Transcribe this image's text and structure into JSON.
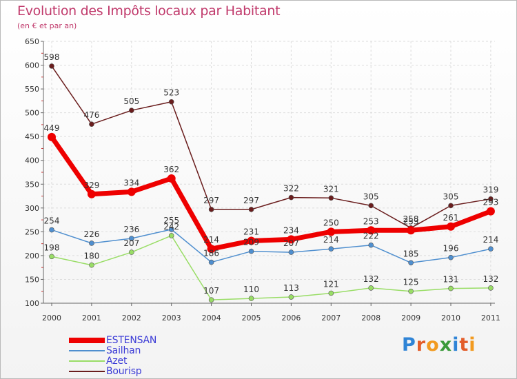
{
  "chart_data": {
    "type": "line",
    "title": "Evolution des Impôts locaux par Habitant",
    "subtitle": "(en € et par an)",
    "xlabel": "",
    "ylabel": "",
    "ylim": [
      100,
      650
    ],
    "yticks": [
      "650",
      "600",
      "550",
      "500",
      "450",
      "400",
      "350",
      "300",
      "250",
      "200",
      "150",
      "100"
    ],
    "categories": [
      "2000",
      "2001",
      "2002",
      "2003",
      "2004",
      "2005",
      "2006",
      "2007",
      "2008",
      "2009",
      "2010",
      "2011"
    ],
    "series": [
      {
        "name": "ESTENSAN",
        "color": "#ee0000",
        "values": [
          449,
          329,
          334,
          362,
          214,
          231,
          234,
          250,
          253,
          253,
          261,
          293
        ]
      },
      {
        "name": "Sailhan",
        "color": "#4f8fcf",
        "values": [
          254,
          226,
          236,
          255,
          186,
          209,
          207,
          214,
          222,
          185,
          196,
          214
        ]
      },
      {
        "name": "Azet",
        "color": "#99dd66",
        "values": [
          198,
          180,
          207,
          242,
          107,
          110,
          113,
          121,
          132,
          125,
          131,
          132
        ]
      },
      {
        "name": "Bourisp",
        "color": "#6a1d1d",
        "values": [
          598,
          476,
          505,
          523,
          297,
          297,
          322,
          321,
          305,
          258,
          305,
          319
        ]
      }
    ]
  },
  "logo": {
    "text": "Proxiti",
    "letters": [
      {
        "ch": "P",
        "color": "#2f84d6"
      },
      {
        "ch": "r",
        "color": "#e35d2a"
      },
      {
        "ch": "o",
        "color": "#f29a1f"
      },
      {
        "ch": "x",
        "color": "#3a9a3a"
      },
      {
        "ch": "i",
        "color": "#2f84d6"
      },
      {
        "ch": "t",
        "color": "#e35d2a"
      },
      {
        "ch": "i",
        "color": "#f29a1f"
      }
    ]
  }
}
